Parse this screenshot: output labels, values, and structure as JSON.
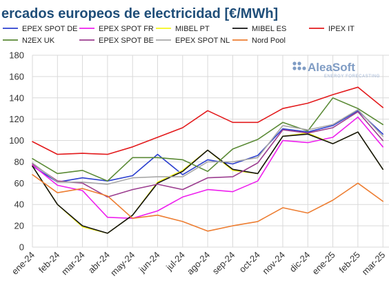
{
  "chart_data": {
    "type": "line",
    "title": "ercados europeos de electricidad [€/MWh]",
    "xlabel": "",
    "ylabel": "",
    "categories": [
      "ene-24",
      "feb-24",
      "mar-24",
      "abr-24",
      "may-24",
      "jun-24",
      "jul-24",
      "ago-24",
      "sep-24",
      "oct-24",
      "nov-24",
      "dic-24",
      "ene-25",
      "feb-25",
      "mar-25"
    ],
    "ylim": [
      0,
      180
    ],
    "yticks": [
      0,
      20,
      40,
      60,
      80,
      100,
      120,
      140,
      160,
      180
    ],
    "grid": true,
    "legend_position": "top",
    "series": [
      {
        "name": "EPEX SPOT DE",
        "color": "#2b3fcf",
        "values": [
          76,
          61,
          65,
          62,
          67,
          87,
          68,
          82,
          78,
          86,
          111,
          108,
          114,
          128,
          106
        ]
      },
      {
        "name": "EPEX SPOT FR",
        "color": "#ee1fee",
        "values": [
          77,
          58,
          53,
          28,
          27,
          34,
          47,
          54,
          52,
          62,
          100,
          98,
          103,
          122,
          94
        ]
      },
      {
        "name": "MIBEL PT",
        "color": "#f5f51a",
        "values": [
          76,
          40,
          19,
          13,
          30,
          61,
          72,
          91,
          72,
          69,
          104,
          107,
          97,
          108,
          73
        ]
      },
      {
        "name": "MIBEL ES",
        "color": "#111111",
        "values": [
          76,
          40,
          20,
          13,
          30,
          60,
          71,
          91,
          73,
          69,
          104,
          106,
          97,
          108,
          73
        ]
      },
      {
        "name": "IPEX IT",
        "color": "#e31a1c",
        "values": [
          99,
          87,
          88,
          87,
          94,
          103,
          112,
          128,
          117,
          117,
          130,
          135,
          143,
          150,
          131
        ]
      },
      {
        "name": "N2EX UK",
        "color": "#5a8a35",
        "values": [
          83,
          69,
          72,
          62,
          84,
          84,
          82,
          71,
          92,
          101,
          117,
          109,
          140,
          130,
          115
        ]
      },
      {
        "name": "EPEX SPOT BE",
        "color": "#9b3d8f",
        "values": [
          78,
          62,
          60,
          47,
          54,
          59,
          54,
          65,
          66,
          79,
          110,
          107,
          112,
          127,
          100
        ]
      },
      {
        "name": "EPEX SPOT NL",
        "color": "#a8a8a8",
        "values": [
          79,
          61,
          61,
          59,
          65,
          66,
          66,
          80,
          80,
          84,
          114,
          110,
          115,
          129,
          104
        ]
      },
      {
        "name": "Nord Pool",
        "color": "#ed7d31",
        "values": [
          68,
          51,
          55,
          48,
          27,
          30,
          24,
          15,
          20,
          24,
          37,
          32,
          44,
          60,
          43
        ]
      }
    ]
  },
  "logo": {
    "name": "AleaSoft",
    "subtitle": "ENERGY FORECASTING"
  }
}
